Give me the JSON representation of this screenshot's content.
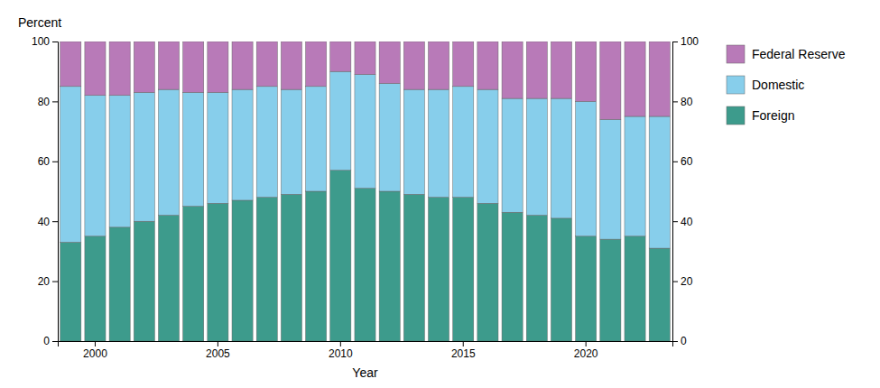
{
  "chart_data": {
    "type": "bar",
    "stacked": true,
    "x_label": "Year",
    "y_label": "Percent",
    "categories": [
      null,
      "2000",
      null,
      null,
      null,
      null,
      "2005",
      null,
      null,
      null,
      null,
      "2010",
      null,
      null,
      null,
      null,
      "2015",
      null,
      null,
      null,
      null,
      "2020",
      null,
      null,
      null
    ],
    "series": [
      {
        "name": "Foreign",
        "color": "#3d9b8c",
        "values": [
          33,
          35,
          38,
          40,
          42,
          45,
          46,
          47,
          48,
          49,
          50,
          57,
          51,
          50,
          49,
          48,
          48,
          46,
          43,
          42,
          41,
          35,
          34,
          35,
          31
        ]
      },
      {
        "name": "Domestic",
        "color": "#87ceeb",
        "values": [
          52,
          47,
          44,
          43,
          42,
          38,
          37,
          37,
          37,
          35,
          35,
          33,
          38,
          36,
          35,
          36,
          37,
          38,
          38,
          39,
          40,
          45,
          40,
          40,
          44
        ]
      },
      {
        "name": "Federal Reserve",
        "color": "#b87ab8",
        "values": [
          15,
          18,
          18,
          17,
          16,
          17,
          17,
          16,
          15,
          16,
          15,
          10,
          11,
          14,
          16,
          16,
          15,
          16,
          19,
          19,
          19,
          20,
          26,
          25,
          25
        ]
      }
    ],
    "ylim": [
      0,
      100
    ],
    "yticks": [
      0,
      20,
      40,
      60,
      80,
      100
    ],
    "y2lim": [
      0,
      100
    ],
    "y2ticks": [
      0,
      20,
      40,
      60,
      80,
      100
    ],
    "grid": false,
    "legend": "right"
  }
}
